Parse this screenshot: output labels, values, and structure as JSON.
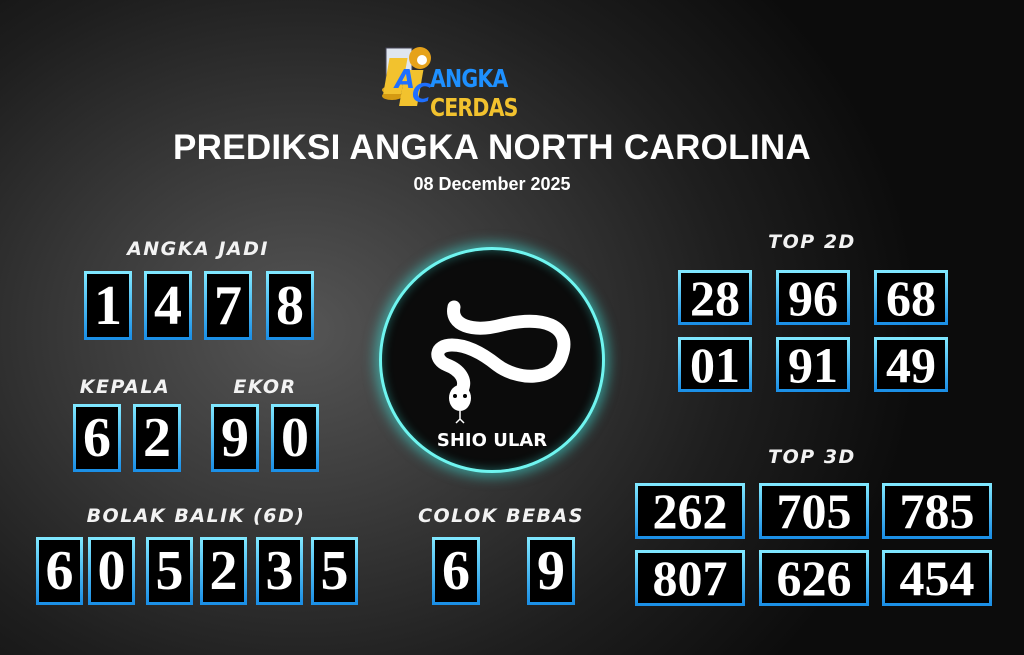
{
  "logo": {
    "text_a": "ANGKA",
    "text_b": "CERDAS",
    "colors": {
      "blue": "#1e90ff",
      "gold": "#f2c22e"
    }
  },
  "title": "PREDIKSI ANGKA NORTH CAROLINA",
  "date": "08 December 2025",
  "angka_jadi": {
    "label": "ANGKA JADI",
    "digits": [
      "1",
      "4",
      "7",
      "8"
    ]
  },
  "kepala": {
    "label": "KEPALA",
    "digits": [
      "6",
      "2"
    ]
  },
  "ekor": {
    "label": "EKOR",
    "digits": [
      "9",
      "0"
    ]
  },
  "bolak_balik": {
    "label": "BOLAK BALIK (6D)",
    "digits": [
      "6",
      "0",
      "5",
      "2",
      "3",
      "5"
    ]
  },
  "shio": {
    "label": "SHIO ULAR",
    "icon": "snake-icon"
  },
  "colok_bebas": {
    "label": "COLOK BEBAS",
    "digits": [
      "6",
      "9"
    ]
  },
  "top2d": {
    "label": "TOP 2D",
    "numbers": [
      "28",
      "96",
      "68",
      "01",
      "91",
      "49"
    ]
  },
  "top3d": {
    "label": "TOP 3D",
    "numbers": [
      "262",
      "705",
      "785",
      "807",
      "626",
      "454"
    ]
  },
  "colors": {
    "box_border_top": "#7fe7ff",
    "box_border_bottom": "#1b8fe6",
    "glow": "#6ff5f0"
  }
}
